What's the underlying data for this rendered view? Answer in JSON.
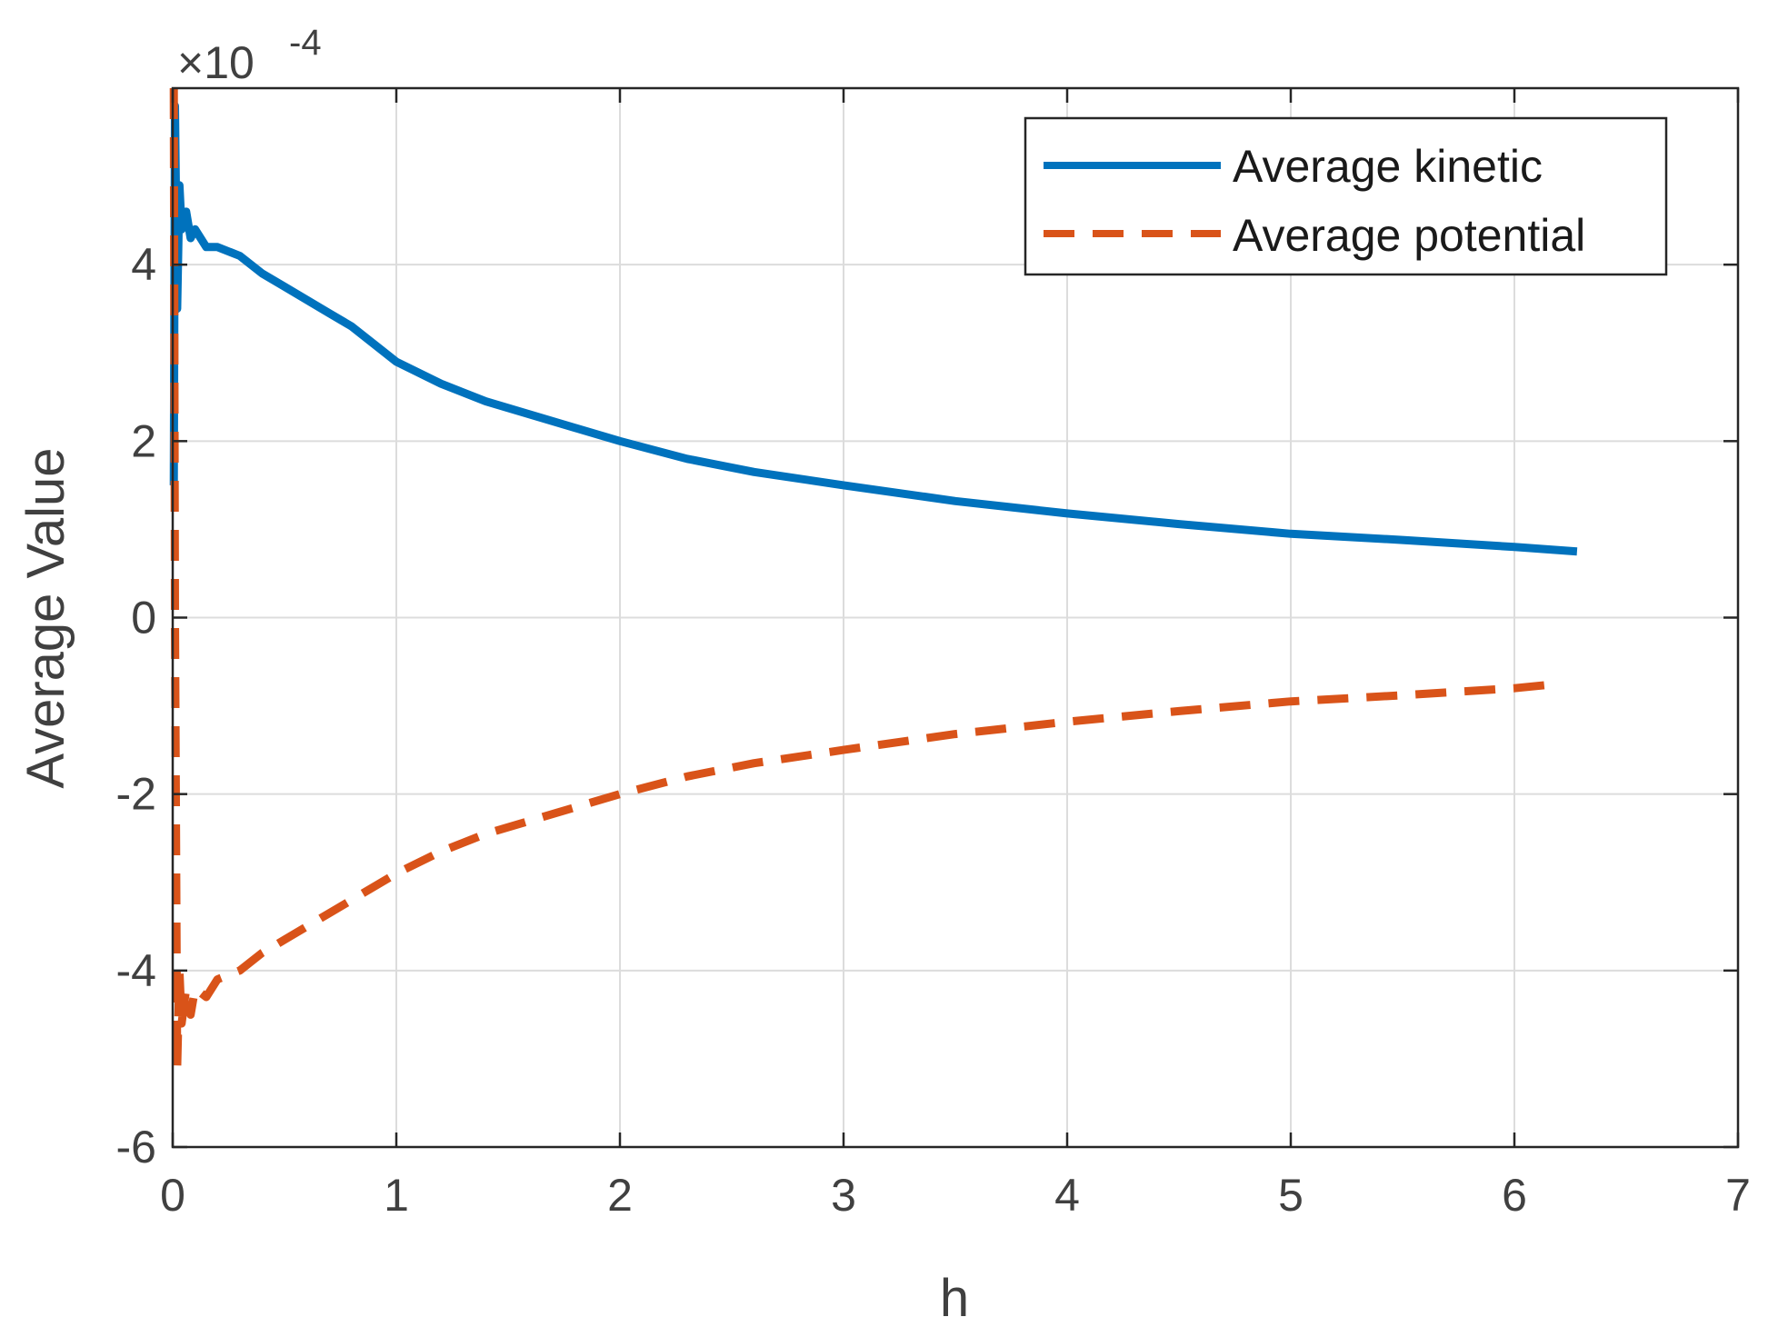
{
  "chart_data": {
    "type": "line",
    "title": "",
    "xlabel": "h",
    "ylabel": "Average Value",
    "exponent_label": {
      "base": "×10",
      "power": "-4"
    },
    "xlim": [
      0,
      7
    ],
    "ylim": [
      -6,
      6
    ],
    "xticks": [
      0,
      1,
      2,
      3,
      4,
      5,
      6,
      7
    ],
    "yticks": [
      -6,
      -4,
      -2,
      0,
      2,
      4
    ],
    "ytick_labels": [
      "-6",
      "-4",
      "-2",
      "0",
      "2",
      "4"
    ],
    "xtick_labels": [
      "0",
      "1",
      "2",
      "3",
      "4",
      "5",
      "6",
      "7"
    ],
    "grid": true,
    "legend_position": "top-right",
    "series": [
      {
        "name": "Average kinetic",
        "color": "#0072BD",
        "style": "solid",
        "x": [
          0.005,
          0.01,
          0.02,
          0.03,
          0.04,
          0.06,
          0.08,
          0.1,
          0.15,
          0.2,
          0.3,
          0.4,
          0.5,
          0.6,
          0.7,
          0.8,
          1.0,
          1.2,
          1.4,
          1.6,
          1.8,
          2.0,
          2.3,
          2.6,
          3.0,
          3.5,
          4.0,
          4.5,
          5.0,
          5.5,
          6.0,
          6.28
        ],
        "y": [
          1.5,
          5.8,
          3.5,
          4.9,
          4.4,
          4.6,
          4.3,
          4.4,
          4.2,
          4.2,
          4.1,
          3.9,
          3.75,
          3.6,
          3.45,
          3.3,
          2.9,
          2.65,
          2.45,
          2.3,
          2.15,
          2.0,
          1.8,
          1.65,
          1.5,
          1.32,
          1.18,
          1.06,
          0.95,
          0.88,
          0.8,
          0.75
        ]
      },
      {
        "name": "Average potential",
        "color": "#D95319",
        "style": "dashed",
        "x": [
          0.005,
          0.01,
          0.02,
          0.03,
          0.04,
          0.06,
          0.08,
          0.1,
          0.15,
          0.2,
          0.3,
          0.4,
          0.5,
          0.6,
          0.7,
          0.8,
          1.0,
          1.2,
          1.4,
          1.6,
          1.8,
          2.0,
          2.3,
          2.6,
          3.0,
          3.5,
          4.0,
          4.5,
          5.0,
          5.5,
          6.0,
          6.2
        ],
        "y": [
          6.0,
          0.0,
          -5.1,
          -4.0,
          -4.6,
          -4.2,
          -4.5,
          -4.2,
          -4.3,
          -4.1,
          -4.0,
          -3.8,
          -3.65,
          -3.5,
          -3.35,
          -3.2,
          -2.9,
          -2.65,
          -2.45,
          -2.3,
          -2.15,
          -2.0,
          -1.8,
          -1.65,
          -1.5,
          -1.32,
          -1.18,
          -1.06,
          -0.95,
          -0.88,
          -0.8,
          -0.75
        ]
      }
    ]
  }
}
